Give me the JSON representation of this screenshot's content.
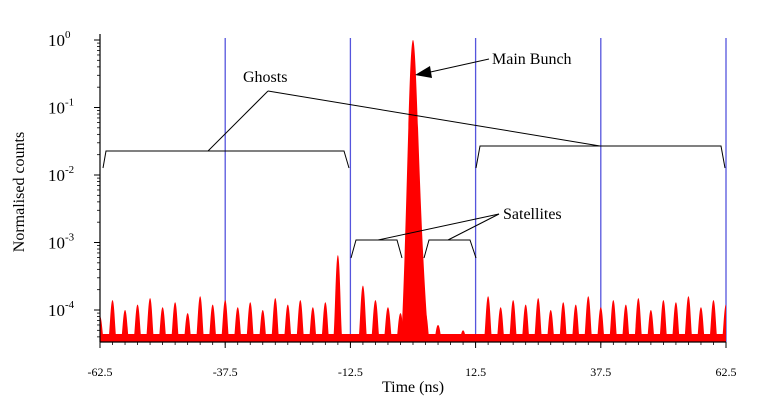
{
  "chart_data": {
    "type": "area",
    "xlabel": "Time (ns)",
    "ylabel": "Normalised counts",
    "xlim": [
      -62.5,
      62.5
    ],
    "ylim_log10": [
      -4.5,
      0
    ],
    "y_scale": "log",
    "x_ticks": [
      "-62.5",
      "-37.5",
      "-12.5",
      "12.5",
      "37.5",
      "62.5"
    ],
    "x_tick_values": [
      -62.5,
      -37.5,
      -12.5,
      12.5,
      37.5,
      62.5
    ],
    "y_ticks": [
      {
        "base": "10",
        "exp": "0",
        "value": 1
      },
      {
        "base": "10",
        "exp": "-1",
        "value": 0.1
      },
      {
        "base": "10",
        "exp": "-2",
        "value": 0.01
      },
      {
        "base": "10",
        "exp": "-3",
        "value": 0.001
      },
      {
        "base": "10",
        "exp": "-4",
        "value": 0.0001
      }
    ],
    "vertical_lines_x": [
      -37.5,
      -12.5,
      12.5,
      37.5,
      62.5
    ],
    "series_color": "#ff0000",
    "vline_color": "#5555dd",
    "peak_spacing_ns": 2.5,
    "main_bunch": {
      "x": 0,
      "y": 1
    },
    "satellites": [
      {
        "x": -15,
        "y": 0.00065
      },
      {
        "x": -10,
        "y": 0.00023
      },
      {
        "x": -7.5,
        "y": 0.00014
      },
      {
        "x": -5,
        "y": 0.00011
      },
      {
        "x": -2.5,
        "y": 9e-05
      },
      {
        "x": 2.5,
        "y": 9e-05
      },
      {
        "x": 5,
        "y": 6e-05
      },
      {
        "x": 7.5,
        "y": 4e-05
      },
      {
        "x": 10,
        "y": 5e-05
      },
      {
        "x": 12.5,
        "y": 4e-05
      }
    ],
    "ghost_levels": [
      8e-05,
      0.00014,
      0.0001,
      0.00012,
      0.00015,
      0.00011,
      0.00013,
      9e-05,
      0.00016,
      0.00012,
      0.00014,
      0.00011,
      0.00013,
      0.0001,
      0.00015,
      0.00012,
      0.00014,
      0.00011,
      0.00013
    ],
    "ghost_levels_right": [
      0.00016,
      0.00011,
      0.00014,
      0.00012,
      0.00015,
      0.0001,
      0.00013,
      0.00012,
      0.00016,
      0.00011,
      0.00014,
      0.00012,
      0.00015,
      0.0001,
      0.00014,
      0.00013,
      0.00016,
      0.00011,
      0.00014,
      0.00012
    ],
    "annotations": {
      "ghosts": "Ghosts",
      "main_bunch": "Main Bunch",
      "satellites": "Satellites"
    }
  }
}
